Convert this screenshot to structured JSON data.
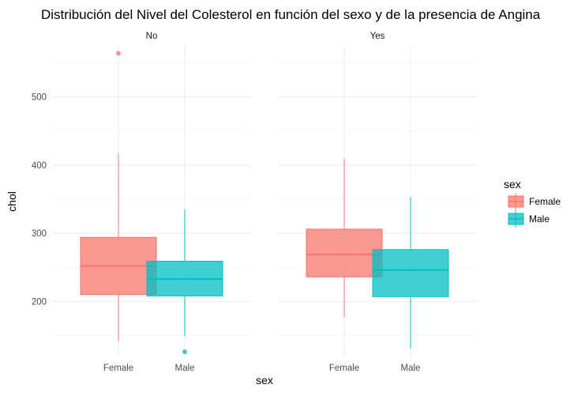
{
  "chart_data": {
    "type": "boxplot",
    "title": "Distribución del Nivel del Colesterol en función del sexo y de la presencia de Angina",
    "xlabel": "sex",
    "ylabel": "chol",
    "facets": [
      "No",
      "Yes"
    ],
    "categories": [
      "Female",
      "Male"
    ],
    "yticks": [
      200,
      300,
      400,
      500
    ],
    "ylim": [
      118,
      575
    ],
    "legend": {
      "title": "sex",
      "position": "right",
      "entries": [
        {
          "label": "Female",
          "color": "#F8766D"
        },
        {
          "label": "Male",
          "color": "#00BFC4"
        }
      ]
    },
    "boxes": [
      {
        "facet": "No",
        "category": "Female",
        "color": "#F8766D",
        "min": 141,
        "q1": 210,
        "median": 252,
        "q3": 294,
        "max": 417,
        "outliers": [
          564
        ]
      },
      {
        "facet": "No",
        "category": "Male",
        "color": "#00BFC4",
        "min": 149,
        "q1": 208,
        "median": 233,
        "q3": 259,
        "max": 335,
        "outliers": [
          126
        ]
      },
      {
        "facet": "Yes",
        "category": "Female",
        "color": "#F8766D",
        "min": 177,
        "q1": 236,
        "median": 269,
        "q3": 306,
        "max": 409,
        "outliers": []
      },
      {
        "facet": "Yes",
        "category": "Male",
        "color": "#00BFC4",
        "min": 131,
        "q1": 207,
        "median": 246,
        "q3": 276,
        "max": 353,
        "outliers": []
      }
    ]
  }
}
